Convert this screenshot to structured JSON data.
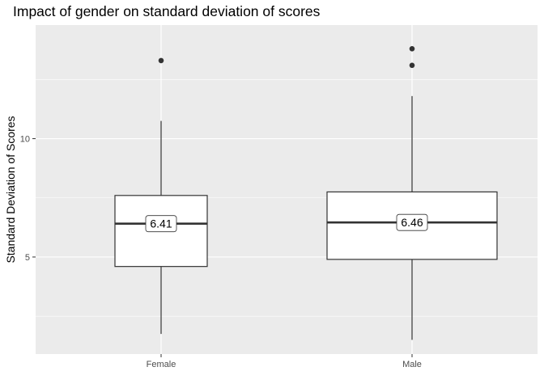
{
  "chart_data": {
    "type": "boxplot",
    "title": "Impact of gender on standard deviation of scores",
    "xlabel": "",
    "ylabel": "Standard Deviation of Scores",
    "ylim": [
      0.9,
      14.8
    ],
    "y_ticks": [
      5,
      10
    ],
    "y_minor_ticks": [
      2.5,
      7.5,
      12.5
    ],
    "grid": true,
    "categories": [
      "Female",
      "Male"
    ],
    "boxes": [
      {
        "category": "Female",
        "whisker_low": 1.75,
        "q1": 4.6,
        "median": 6.41,
        "q3": 7.6,
        "whisker_high": 10.75,
        "outliers": [
          13.3
        ],
        "median_label": "6.41"
      },
      {
        "category": "Male",
        "whisker_low": 1.5,
        "q1": 4.9,
        "median": 6.46,
        "q3": 7.75,
        "whisker_high": 11.8,
        "outliers": [
          13.8,
          13.1
        ],
        "median_label": "6.46"
      }
    ],
    "colors": {
      "panel": "#ebebeb",
      "grid": "#ffffff",
      "box_fill": "#ffffff",
      "box_stroke": "#333333",
      "outlier": "#333333"
    }
  }
}
